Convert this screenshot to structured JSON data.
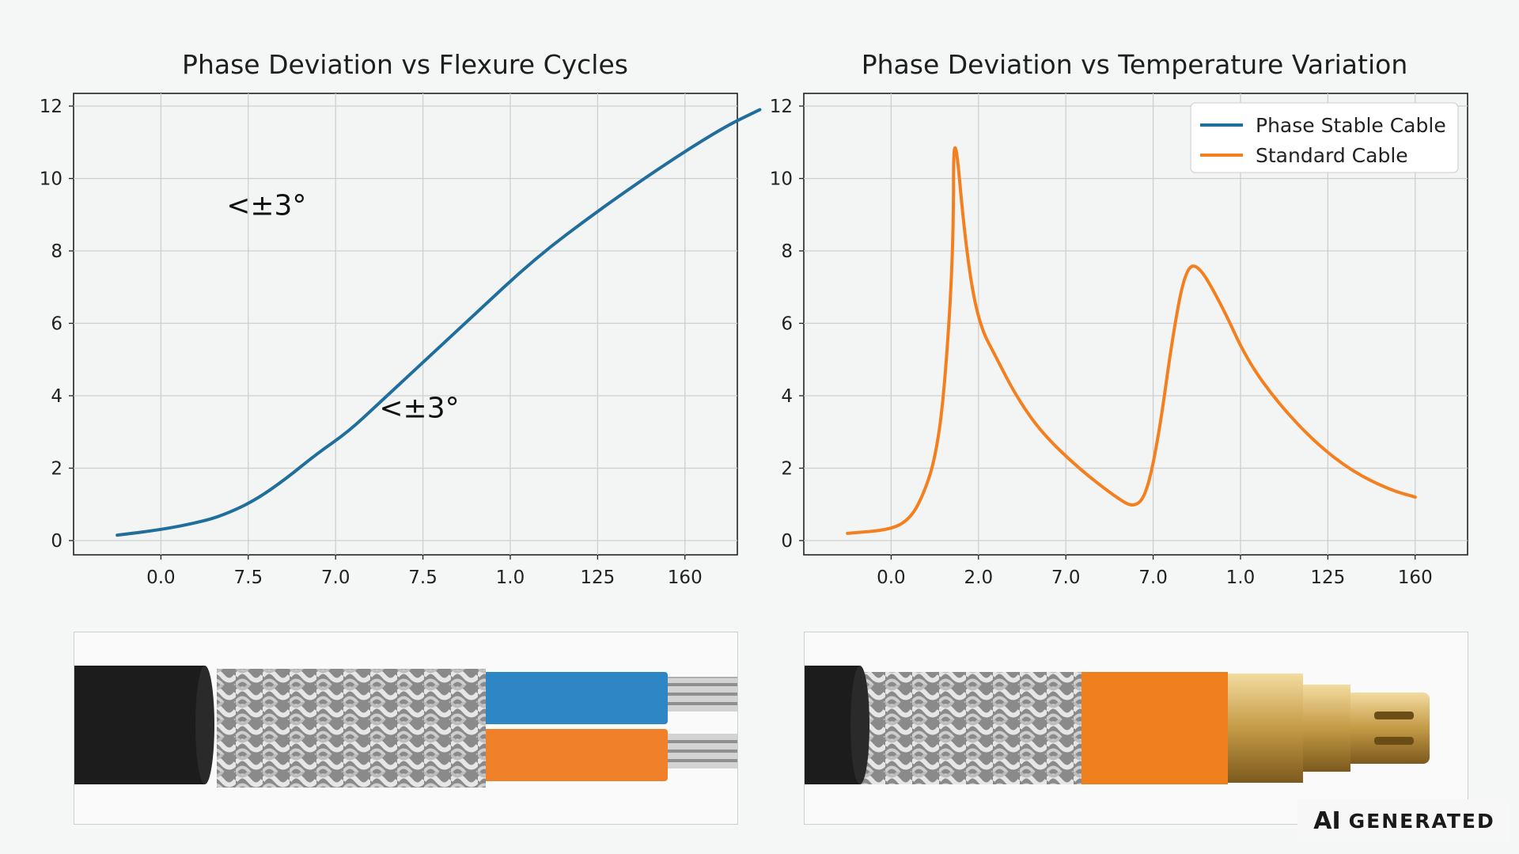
{
  "chart_data": [
    {
      "type": "line",
      "title": "Phase Deviation vs Flexure Cycles",
      "x": [
        0,
        1,
        2,
        3,
        4,
        5,
        6,
        7,
        8,
        9,
        10,
        11,
        12,
        13
      ],
      "x_tick_labels": [
        "0.0",
        "7.5",
        "7.0",
        "7.5",
        "1.0",
        "125",
        "160"
      ],
      "ylim": [
        0,
        12
      ],
      "yticks": [
        0,
        2,
        4,
        6,
        8,
        10,
        12
      ],
      "grid": true,
      "series": [
        {
          "name": "",
          "color": "#1f6e9c",
          "points": [
            [
              -0.7,
              0.15
            ],
            [
              0,
              0.3
            ],
            [
              0.6,
              0.5
            ],
            [
              1,
              0.7
            ],
            [
              1.5,
              1.1
            ],
            [
              2,
              1.7
            ],
            [
              2.5,
              2.4
            ],
            [
              3,
              3.0
            ],
            [
              3.5,
              3.8
            ],
            [
              4,
              4.6
            ],
            [
              5,
              6.2
            ],
            [
              6,
              7.8
            ],
            [
              7,
              9.1
            ],
            [
              8,
              10.3
            ],
            [
              9,
              11.4
            ],
            [
              9.6,
              11.9
            ]
          ]
        }
      ],
      "annotations": [
        {
          "text": "<±3°",
          "x": 1.2,
          "y": 9.0
        },
        {
          "text": "<±3°",
          "x": 4.0,
          "y": 3.4
        }
      ]
    },
    {
      "type": "line",
      "title": "Phase Deviation vs Temperature Variation",
      "x_tick_labels": [
        "0.0",
        "2.0",
        "7.0",
        "7.0",
        "1.0",
        "125",
        "160"
      ],
      "ylim": [
        0,
        12
      ],
      "yticks": [
        0,
        2,
        4,
        6,
        8,
        10,
        12
      ],
      "grid": true,
      "legend_position": "top-right",
      "series": [
        {
          "name": "Phase Stable Cable",
          "color": "#1f6e9c",
          "points": []
        },
        {
          "name": "Standard Cable",
          "color": "#f47f1f",
          "points": [
            [
              -0.7,
              0.2
            ],
            [
              0,
              0.3
            ],
            [
              0.3,
              0.6
            ],
            [
              0.5,
              1.2
            ],
            [
              0.7,
              2.2
            ],
            [
              0.85,
              4.0
            ],
            [
              1.0,
              8.0
            ],
            [
              1.0,
              11.8
            ],
            [
              1.2,
              8.0
            ],
            [
              1.4,
              6.0
            ],
            [
              1.7,
              5.0
            ],
            [
              2.0,
              4.0
            ],
            [
              2.4,
              3.0
            ],
            [
              3.0,
              2.0
            ],
            [
              3.6,
              1.2
            ],
            [
              3.9,
              0.9
            ],
            [
              4.1,
              1.3
            ],
            [
              4.3,
              3.0
            ],
            [
              4.5,
              5.5
            ],
            [
              4.7,
              7.4
            ],
            [
              4.9,
              7.7
            ],
            [
              5.3,
              6.5
            ],
            [
              5.7,
              5.0
            ],
            [
              6.2,
              3.8
            ],
            [
              6.8,
              2.7
            ],
            [
              7.4,
              1.9
            ],
            [
              8.0,
              1.4
            ],
            [
              8.4,
              1.2
            ]
          ]
        }
      ]
    }
  ],
  "photos": {
    "left": "cable-dual-core",
    "right": "cable-sma-connector"
  },
  "watermark": {
    "ai": "AI",
    "generated": "GENERATED"
  }
}
